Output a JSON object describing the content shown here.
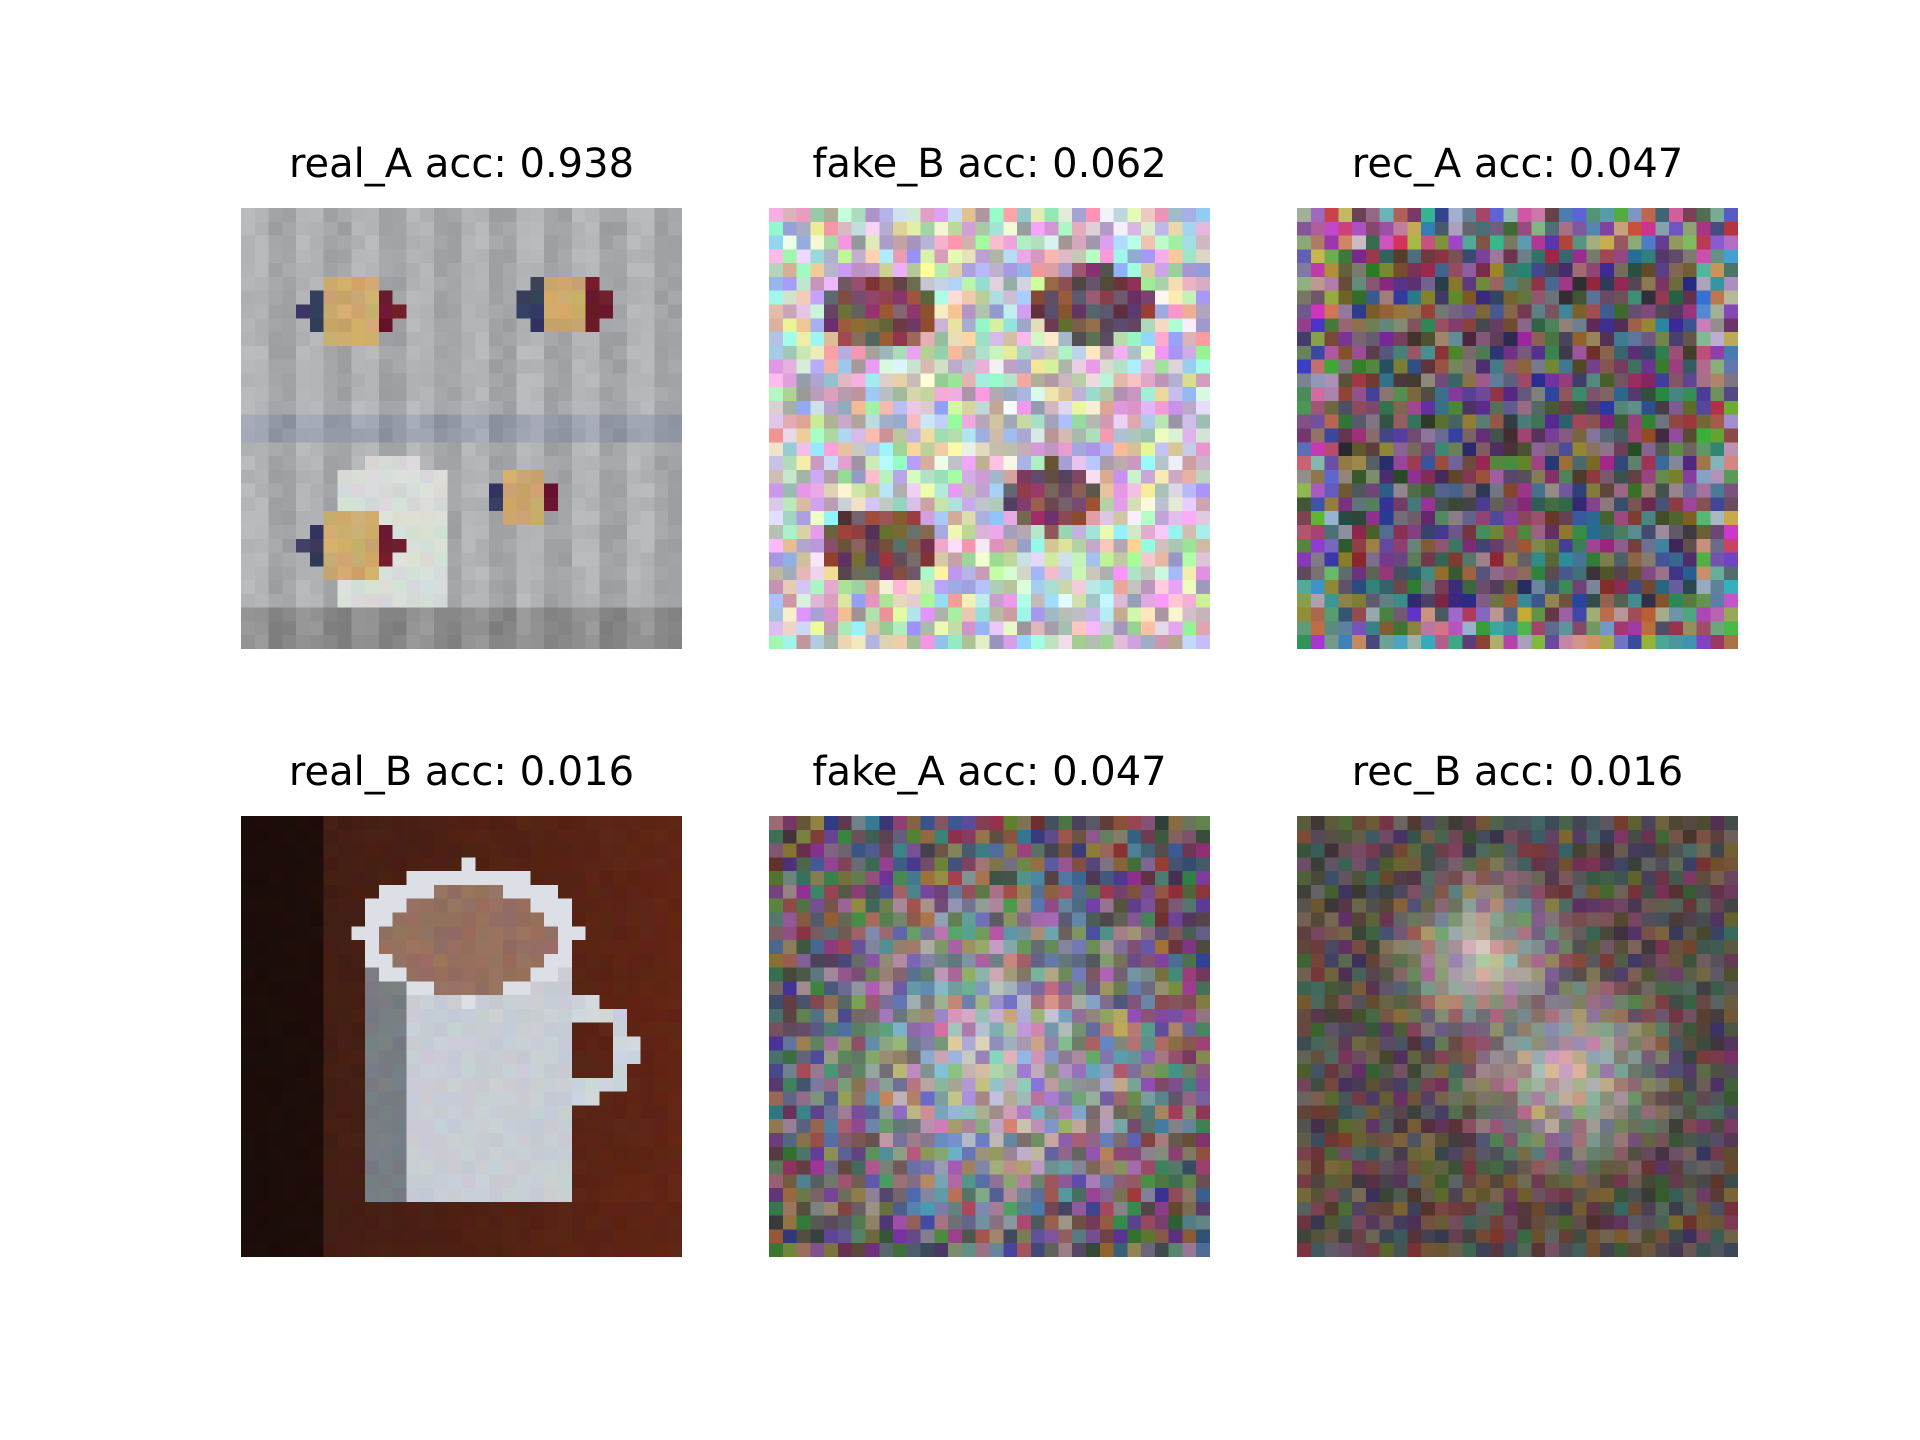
{
  "figure": {
    "panels": [
      {
        "title": "real_A acc: 0.938",
        "image": "mugs-with-striped-pattern-grey-background"
      },
      {
        "title": "fake_B acc: 0.062",
        "image": "noisy-pastel-translation"
      },
      {
        "title": "rec_A acc: 0.047",
        "image": "dark-noise-reconstruction"
      },
      {
        "title": "real_B acc: 0.016",
        "image": "white-mug-with-coffee-dark-wood"
      },
      {
        "title": "fake_A acc: 0.047",
        "image": "dark-noise-with-bright-center"
      },
      {
        "title": "rec_B acc: 0.016",
        "image": "dark-noise-with-pinkish-blob"
      }
    ]
  }
}
